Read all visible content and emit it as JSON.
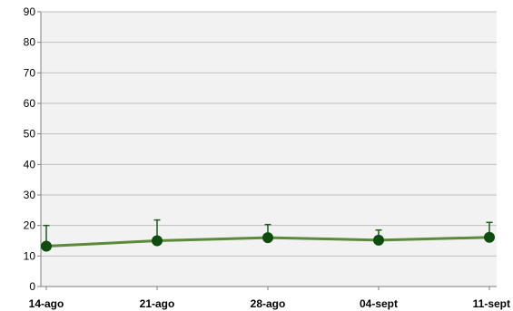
{
  "chart_data": {
    "type": "line",
    "categories": [
      "14-ago",
      "21-ago",
      "28-ago",
      "04-sept",
      "11-sept"
    ],
    "series": [
      {
        "values": [
          13.2,
          15.0,
          16.0,
          15.2,
          16.1
        ],
        "error_upper": [
          20.0,
          21.8,
          20.3,
          18.5,
          21.0
        ]
      }
    ],
    "ylim": [
      0,
      90
    ],
    "yticks": [
      0,
      10,
      20,
      30,
      40,
      50,
      60,
      70,
      80,
      90
    ],
    "grid": true,
    "colors": {
      "line": "#5a8a3a",
      "marker": "#0f4d0f",
      "error_bar": "#1a5c1a",
      "grid": "#bfbfbf",
      "plot_background": "#f2f2f2"
    }
  }
}
